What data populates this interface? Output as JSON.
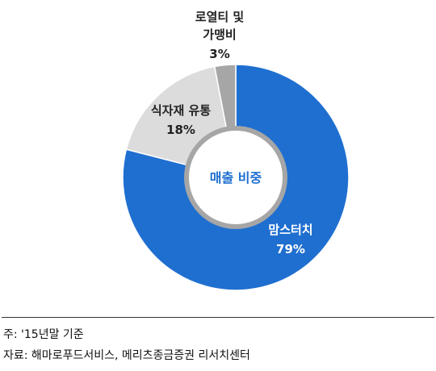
{
  "chart_data": {
    "type": "pie",
    "center_label": "매출 비중",
    "slices": [
      {
        "label": "맘스터치",
        "value": 79,
        "value_label": "79%",
        "color": "#1f6fd0"
      },
      {
        "label": "식자재 유통",
        "value": 18,
        "value_label": "18%",
        "color": "#dcdcdc"
      },
      {
        "label": "로열티 및 가맹비",
        "label_lines": [
          "로열티 및",
          "가맹비"
        ],
        "value": 3,
        "value_label": "3%",
        "color": "#a6a6a6"
      }
    ]
  },
  "notes": {
    "basis": "주: '15년말 기준",
    "source": "자료: 해마로푸드서비스, 메리츠종금증권 리서치센터"
  }
}
